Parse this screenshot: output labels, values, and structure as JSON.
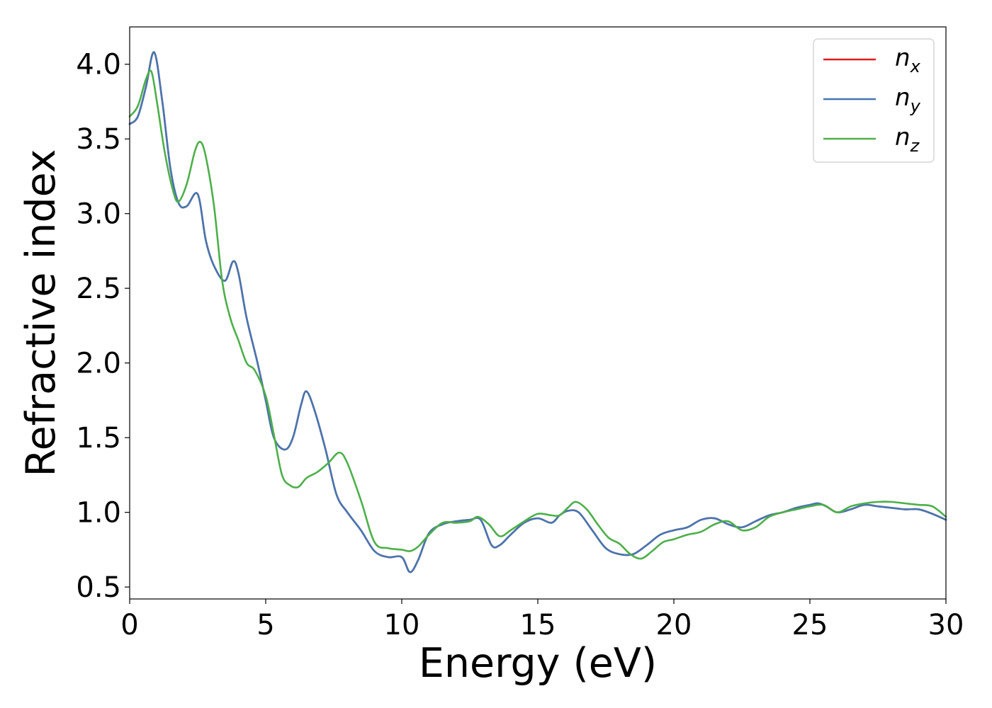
{
  "chart_data": {
    "type": "line",
    "title": "",
    "xlabel": "Energy (eV)",
    "ylabel": "Refractive index",
    "xlim": [
      0,
      30
    ],
    "ylim": [
      0.42,
      4.25
    ],
    "xticks": [
      0,
      5,
      10,
      15,
      20,
      25,
      30
    ],
    "xtick_labels": [
      "0",
      "5",
      "10",
      "15",
      "20",
      "25",
      "30"
    ],
    "yticks": [
      0.5,
      1.0,
      1.5,
      2.0,
      2.5,
      3.0,
      3.5,
      4.0
    ],
    "ytick_labels": [
      "0.5",
      "1.0",
      "1.5",
      "2.0",
      "2.5",
      "3.0",
      "3.5",
      "4.0"
    ],
    "grid": false,
    "legend_position": "top-right",
    "series": [
      {
        "name": "n",
        "subscript": "x",
        "color": "#e41a1c",
        "x": [
          0,
          0.3,
          0.6,
          0.9,
          1.2,
          1.5,
          1.8,
          2.1,
          2.5,
          2.8,
          3.1,
          3.5,
          3.8,
          4.0,
          4.3,
          4.7,
          5.0,
          5.3,
          5.7,
          6.0,
          6.3,
          6.5,
          6.8,
          7.2,
          7.6,
          8.0,
          8.5,
          9.0,
          9.5,
          10.0,
          10.3,
          10.6,
          11.0,
          11.5,
          12.0,
          12.5,
          12.9,
          13.3,
          13.6,
          14.0,
          14.5,
          15.0,
          15.5,
          15.8,
          16.1,
          16.5,
          17.0,
          17.5,
          18.0,
          18.5,
          19.0,
          19.5,
          20.0,
          20.5,
          21.0,
          21.5,
          22.0,
          22.5,
          23.0,
          23.5,
          24.0,
          24.5,
          25.0,
          25.3,
          25.6,
          26.0,
          26.5,
          27.0,
          27.5,
          28.0,
          28.5,
          29.0,
          29.5,
          30.0
        ],
        "y": [
          3.6,
          3.65,
          3.85,
          4.08,
          3.75,
          3.3,
          3.07,
          3.05,
          3.13,
          2.82,
          2.65,
          2.55,
          2.68,
          2.6,
          2.3,
          2.0,
          1.75,
          1.5,
          1.42,
          1.5,
          1.72,
          1.81,
          1.68,
          1.42,
          1.12,
          1.0,
          0.88,
          0.74,
          0.7,
          0.7,
          0.6,
          0.68,
          0.86,
          0.92,
          0.94,
          0.95,
          0.95,
          0.78,
          0.78,
          0.85,
          0.93,
          0.96,
          0.93,
          0.98,
          1.01,
          1.0,
          0.88,
          0.76,
          0.72,
          0.72,
          0.78,
          0.85,
          0.88,
          0.9,
          0.95,
          0.96,
          0.92,
          0.9,
          0.94,
          0.98,
          1.0,
          1.03,
          1.05,
          1.06,
          1.04,
          1.0,
          1.02,
          1.05,
          1.04,
          1.03,
          1.02,
          1.02,
          0.99,
          0.95
        ]
      },
      {
        "name": "n",
        "subscript": "y",
        "color": "#4477b2",
        "x": [
          0,
          0.3,
          0.6,
          0.9,
          1.2,
          1.5,
          1.8,
          2.1,
          2.5,
          2.8,
          3.1,
          3.5,
          3.8,
          4.0,
          4.3,
          4.7,
          5.0,
          5.3,
          5.7,
          6.0,
          6.3,
          6.5,
          6.8,
          7.2,
          7.6,
          8.0,
          8.5,
          9.0,
          9.5,
          10.0,
          10.3,
          10.6,
          11.0,
          11.5,
          12.0,
          12.5,
          12.9,
          13.3,
          13.6,
          14.0,
          14.5,
          15.0,
          15.5,
          15.8,
          16.1,
          16.5,
          17.0,
          17.5,
          18.0,
          18.5,
          19.0,
          19.5,
          20.0,
          20.5,
          21.0,
          21.5,
          22.0,
          22.5,
          23.0,
          23.5,
          24.0,
          24.5,
          25.0,
          25.3,
          25.6,
          26.0,
          26.5,
          27.0,
          27.5,
          28.0,
          28.5,
          29.0,
          29.5,
          30.0
        ],
        "y": [
          3.6,
          3.65,
          3.85,
          4.08,
          3.75,
          3.3,
          3.07,
          3.05,
          3.13,
          2.82,
          2.65,
          2.55,
          2.68,
          2.6,
          2.3,
          2.0,
          1.75,
          1.5,
          1.42,
          1.5,
          1.72,
          1.81,
          1.68,
          1.42,
          1.12,
          1.0,
          0.88,
          0.74,
          0.7,
          0.7,
          0.6,
          0.68,
          0.86,
          0.92,
          0.94,
          0.95,
          0.95,
          0.78,
          0.78,
          0.85,
          0.93,
          0.96,
          0.93,
          0.98,
          1.01,
          1.0,
          0.88,
          0.76,
          0.72,
          0.72,
          0.78,
          0.85,
          0.88,
          0.9,
          0.95,
          0.96,
          0.92,
          0.9,
          0.94,
          0.98,
          1.0,
          1.03,
          1.05,
          1.06,
          1.04,
          1.0,
          1.02,
          1.05,
          1.04,
          1.03,
          1.02,
          1.02,
          0.99,
          0.95
        ]
      },
      {
        "name": "n",
        "subscript": "z",
        "color": "#4daf4a",
        "x": [
          0,
          0.3,
          0.6,
          0.8,
          1.0,
          1.3,
          1.6,
          1.8,
          2.1,
          2.4,
          2.6,
          2.8,
          3.1,
          3.4,
          3.7,
          4.0,
          4.3,
          4.6,
          5.0,
          5.3,
          5.6,
          5.9,
          6.2,
          6.5,
          6.9,
          7.3,
          7.7,
          8.0,
          8.5,
          9.0,
          9.5,
          10.0,
          10.3,
          10.6,
          11.0,
          11.5,
          12.0,
          12.5,
          12.8,
          13.2,
          13.6,
          14.0,
          14.5,
          15.0,
          15.5,
          15.8,
          16.1,
          16.4,
          16.8,
          17.2,
          17.6,
          18.0,
          18.4,
          18.8,
          19.2,
          19.6,
          20.0,
          20.5,
          21.0,
          21.5,
          22.0,
          22.5,
          23.0,
          23.5,
          24.0,
          24.5,
          25.0,
          25.5,
          26.0,
          26.5,
          27.0,
          27.5,
          28.0,
          28.5,
          29.0,
          29.5,
          30.0
        ],
        "y": [
          3.65,
          3.72,
          3.9,
          3.95,
          3.75,
          3.4,
          3.15,
          3.08,
          3.2,
          3.42,
          3.48,
          3.38,
          3.05,
          2.55,
          2.3,
          2.15,
          2.0,
          1.95,
          1.78,
          1.52,
          1.25,
          1.18,
          1.17,
          1.23,
          1.27,
          1.33,
          1.4,
          1.33,
          1.08,
          0.8,
          0.76,
          0.75,
          0.74,
          0.77,
          0.85,
          0.93,
          0.93,
          0.94,
          0.97,
          0.92,
          0.84,
          0.88,
          0.94,
          0.99,
          0.98,
          0.98,
          1.03,
          1.07,
          1.02,
          0.92,
          0.83,
          0.79,
          0.72,
          0.69,
          0.74,
          0.8,
          0.82,
          0.85,
          0.87,
          0.92,
          0.94,
          0.88,
          0.9,
          0.97,
          1.0,
          1.02,
          1.04,
          1.05,
          1.0,
          1.04,
          1.06,
          1.07,
          1.07,
          1.06,
          1.05,
          1.04,
          0.97
        ]
      }
    ]
  }
}
